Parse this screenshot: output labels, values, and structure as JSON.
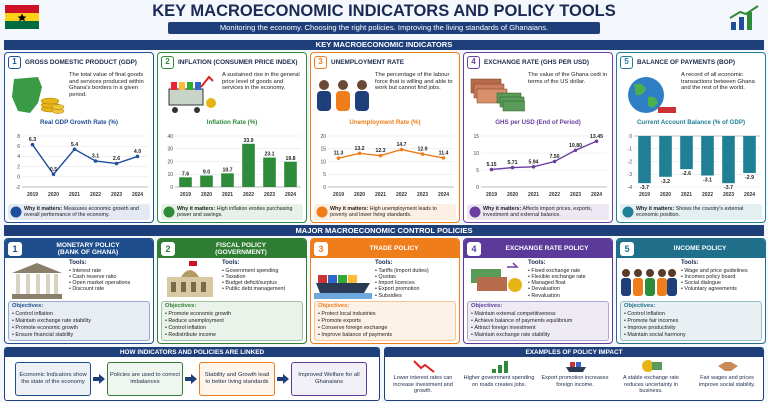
{
  "header": {
    "title": "KEY MACROECONOMIC INDICATORS AND POLICY TOOLS",
    "subtitle": "Monitoring the economy.  Choosing the right policies.  Improving the living standards of Ghanaians."
  },
  "indicators_section": "KEY MACROECONOMIC INDICATORS",
  "why_label": "Why it matters:",
  "indicators": [
    {
      "number": 1,
      "title": "GROSS DOMESTIC PRODUCT (GDP)",
      "description": "The total value of final goods and services produced within Ghana's borders in a given period.",
      "why": "Measures economic growth and overall performance of the economy."
    },
    {
      "number": 2,
      "title": "INFLATION (CONSUMER PRICE INDEX)",
      "description": "A sustained rise in the general price level of goods and services in the economy.",
      "why": "High inflation erodes purchasing power and savings."
    },
    {
      "number": 3,
      "title": "UNEMPLOYMENT RATE",
      "description": "The percentage of the labour force that is willing and able to work but cannot find jobs.",
      "why": "High unemployment leads to poverty and lower living standards."
    },
    {
      "number": 4,
      "title": "EXCHANGE RATE (GHS PER USD)",
      "description": "The value of the Ghana cedi in terms of the US dollar.",
      "why": "Affects import prices, exports, investment and external balance."
    },
    {
      "number": 5,
      "title": "BALANCE OF PAYMENTS (BOP)",
      "description": "A record of all economic transactions between Ghana and the rest of the world.",
      "why": "Shows the country's external economic position."
    }
  ],
  "chart_data": [
    {
      "type": "line",
      "title": "Real GDP Growth Rate (%)",
      "categories": [
        "2019",
        "2020",
        "2021",
        "2022",
        "2023",
        "2024"
      ],
      "values": [
        6.3,
        0.5,
        5.4,
        3.1,
        2.6,
        4.0
      ],
      "value_labels": [
        "6.3",
        "0.5",
        "5.4",
        "3.1",
        "2.6",
        "4.0"
      ],
      "color": "#1f4e9c",
      "ylim": [
        -2,
        8
      ],
      "yticks": [
        -2,
        0,
        2,
        4,
        6,
        8
      ]
    },
    {
      "type": "bar",
      "title": "Inflation Rate (%)",
      "categories": [
        "2019",
        "2020",
        "2021",
        "2022",
        "2023",
        "2024"
      ],
      "values": [
        7.6,
        9.0,
        10.7,
        33.9,
        23.1,
        19.8
      ],
      "value_labels": [
        "7.6",
        "9.0",
        "10.7",
        "33.9",
        "23.1",
        "19.8"
      ],
      "color": "#2e8b3a",
      "ylim": [
        0,
        40
      ],
      "yticks": [
        0,
        10,
        20,
        30,
        40
      ]
    },
    {
      "type": "line",
      "title": "Unemployment Rate (%)",
      "categories": [
        "2019",
        "2020",
        "2021",
        "2022",
        "2023",
        "2024"
      ],
      "values": [
        11.3,
        13.2,
        12.3,
        14.7,
        12.9,
        11.4
      ],
      "color": "#ef7d1a",
      "ylim": [
        0,
        20
      ],
      "yticks": [
        0,
        5,
        10,
        15,
        20
      ]
    },
    {
      "type": "line",
      "title": "GHS per USD (End of Period)",
      "categories": [
        "2019",
        "2020",
        "2021",
        "2022",
        "2023",
        "2024"
      ],
      "values": [
        5.15,
        5.71,
        5.94,
        7.5,
        10.8,
        13.45
      ],
      "value_labels": [
        "5.15",
        "5.71",
        "5.94",
        "7.50",
        "10.80",
        "13.45"
      ],
      "color": "#6b3fa0",
      "ylim": [
        0,
        15
      ],
      "yticks": [
        0,
        5,
        10,
        15
      ]
    },
    {
      "type": "bar",
      "title": "Current Account Balance (% of GDP)",
      "categories": [
        "2019",
        "2020",
        "2021",
        "2022",
        "2023",
        "2024"
      ],
      "values": [
        -3.7,
        -3.2,
        -2.6,
        -3.1,
        -3.7,
        -2.9
      ],
      "color": "#1f7f95",
      "ylim": [
        -4,
        0
      ],
      "yticks": [
        -4,
        -3,
        -2,
        -1,
        0
      ]
    }
  ],
  "policies_section": "MAJOR MACROECONOMIC CONTROL POLICIES",
  "tools_label": "Tools:",
  "objectives_label": "Objectives:",
  "policies": [
    {
      "number": 1,
      "title": "MONETARY POLICY",
      "subtitle": "(BANK OF GHANA)",
      "tools": [
        "Interest rate",
        "Cash reserve ratio",
        "Open market operations",
        "Discount rate"
      ],
      "objectives": [
        "Control inflation",
        "Maintain exchange rate stability",
        "Promote economic growth",
        "Ensure financial stability"
      ]
    },
    {
      "number": 2,
      "title": "FISCAL POLICY",
      "subtitle": "(GOVERNMENT)",
      "tools": [
        "Government spending",
        "Taxation",
        "Budget deficit/surplus",
        "Public debt management"
      ],
      "objectives": [
        "Promote economic growth",
        "Reduce unemployment",
        "Control inflation",
        "Redistribute income"
      ]
    },
    {
      "number": 3,
      "title": "TRADE POLICY",
      "tools": [
        "Tariffs (import duties)",
        "Quotas",
        "Import licences",
        "Export promotion",
        "Subsidies"
      ],
      "objectives": [
        "Protect local industries",
        "Promote exports",
        "Conserve foreign exchange",
        "Improve balance of payments"
      ]
    },
    {
      "number": 4,
      "title": "EXCHANGE RATE POLICY",
      "tools": [
        "Fixed exchange rate",
        "Flexible exchange rate",
        "Managed float",
        "Devaluation",
        "Revaluation"
      ],
      "objectives": [
        "Maintain external competitiveness",
        "Achieve balance of payments equilibrium",
        "Attract foreign investment",
        "Maintain exchange rate stability"
      ]
    },
    {
      "number": 5,
      "title": "INCOME POLICY",
      "tools": [
        "Wage and price guidelines",
        "Incomes policy board",
        "Social dialogue",
        "Voluntary agreements"
      ],
      "objectives": [
        "Control inflation",
        "Promote fair incomes",
        "Improve productivity",
        "Maintain social harmony"
      ]
    }
  ],
  "links": {
    "title": "HOW INDICATORS AND POLICIES ARE LINKED",
    "steps": [
      "Economic Indicators show the state of the economy",
      "Policies are used to correct imbalances",
      "Stability and Growth lead to better living standards",
      "Improved Welfare for all Ghanaians"
    ]
  },
  "impact": {
    "title": "EXAMPLES OF POLICY IMPACT",
    "items": [
      "Lower interest rates can increase investment and growth.",
      "Higher government spending on roads creates jobs.",
      "Export promotion increases foreign income.",
      "A stable exchange rate reduces uncertainty in business.",
      "Fair wages and prices improve social stability."
    ]
  }
}
